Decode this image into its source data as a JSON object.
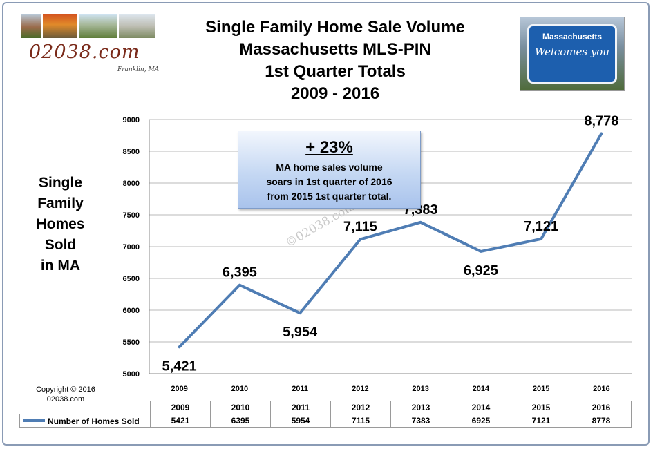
{
  "branding": {
    "logo_text": "02038.com",
    "logo_sub": "Franklin, MA",
    "sign_title": "Massachusetts",
    "sign_welcome": "Welcomes you"
  },
  "header": {
    "title_lines": [
      "Single Family Home Sale Volume",
      "Massachusetts  MLS-PIN",
      "1st Quarter Totals",
      "2009 - 2016"
    ]
  },
  "callout": {
    "headline": "+ 23%",
    "body_lines": [
      "MA home sales volume",
      "soars in 1st quarter of 2016",
      "from 2015 1st quarter total."
    ]
  },
  "watermark": "©02038.com",
  "copyright": {
    "line1": "Copyright  ©  2016",
    "line2": "02038.com"
  },
  "y_axis_title_lines": [
    "Single",
    "Family",
    "Homes",
    "Sold",
    "in MA"
  ],
  "chart_data": {
    "type": "line",
    "title": "Single Family Home Sale Volume Massachusetts  MLS-PIN 1st Quarter Totals 2009 - 2016",
    "xlabel": "",
    "ylabel": "Single Family Homes Sold in MA",
    "categories": [
      "2009",
      "2010",
      "2011",
      "2012",
      "2013",
      "2014",
      "2015",
      "2016"
    ],
    "series": [
      {
        "name": "Number of Homes Sold",
        "values": [
          5421,
          6395,
          5954,
          7115,
          7383,
          6925,
          7121,
          8778
        ],
        "data_labels": [
          "5,421",
          "6,395",
          "5,954",
          "7,115",
          "7,383",
          "6,925",
          "7,121",
          "8,778"
        ],
        "color": "#4f7db4"
      }
    ],
    "ylim": [
      5000,
      9000
    ],
    "yticks": [
      5000,
      5500,
      6000,
      6500,
      7000,
      7500,
      8000,
      8500,
      9000
    ],
    "grid": true,
    "legend": "data table below chart",
    "table_values": [
      "5421",
      "6395",
      "5954",
      "7115",
      "7383",
      "6925",
      "7121",
      "8778"
    ]
  }
}
